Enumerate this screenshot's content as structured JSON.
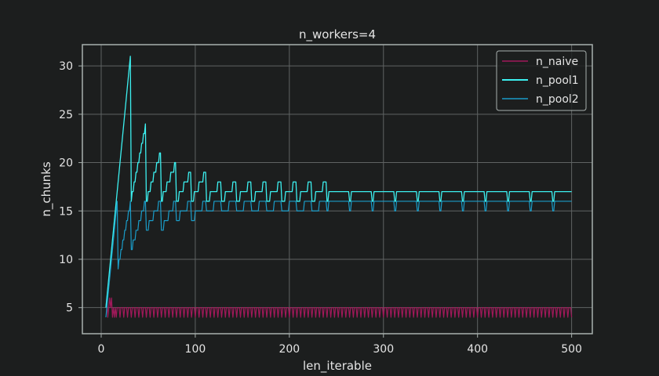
{
  "chart_data": {
    "type": "line",
    "title": "n_workers=4",
    "xlabel": "len_iterable",
    "ylabel": "n_chunks",
    "xlim": [
      -20,
      522
    ],
    "ylim": [
      2.3,
      32.2
    ],
    "xticks": [
      0,
      100,
      200,
      300,
      400,
      500
    ],
    "yticks": [
      5,
      10,
      15,
      20,
      25,
      30
    ],
    "grid": true,
    "legend_position": "top-right",
    "colors": {
      "background": "#1c1e1e",
      "grid": "#5f6363",
      "frame": "#a8b0ae",
      "text": "#e4e4e4"
    },
    "series": [
      {
        "name": "n_naive",
        "color": "#a0195a",
        "description": "oscillates between 4 and 5 for all len_iterable, brief peak of 6 near 11",
        "x": [
          5,
          6,
          7,
          8,
          9,
          10,
          11,
          12,
          13,
          14,
          500
        ],
        "y": [
          5,
          6,
          4,
          5,
          6,
          5,
          6,
          4,
          5,
          4,
          5
        ]
      },
      {
        "name": "n_pool1",
        "color": "#3cf0f0",
        "description": "sawtooth: peaks 31, 24, 21, 20, 19, 19, 18, 18, 18, 18 decaying then plateau 16-17",
        "peaks_x": [
          31,
          47,
          63,
          79,
          95,
          111,
          127,
          143,
          159,
          175,
          191,
          207,
          223,
          239
        ],
        "peaks_y": [
          31,
          24,
          21,
          20,
          19,
          19,
          18,
          18,
          18,
          18,
          18,
          18,
          18,
          18
        ],
        "plateau_low": 16,
        "plateau_high": 17
      },
      {
        "name": "n_pool2",
        "color": "#1a9cc8",
        "description": "lower sawtooth: starts near 4, peaks ~16, dips to ~11 then 13-16, plateau 15-16",
        "plateau_low": 15,
        "plateau_high": 16
      }
    ]
  }
}
